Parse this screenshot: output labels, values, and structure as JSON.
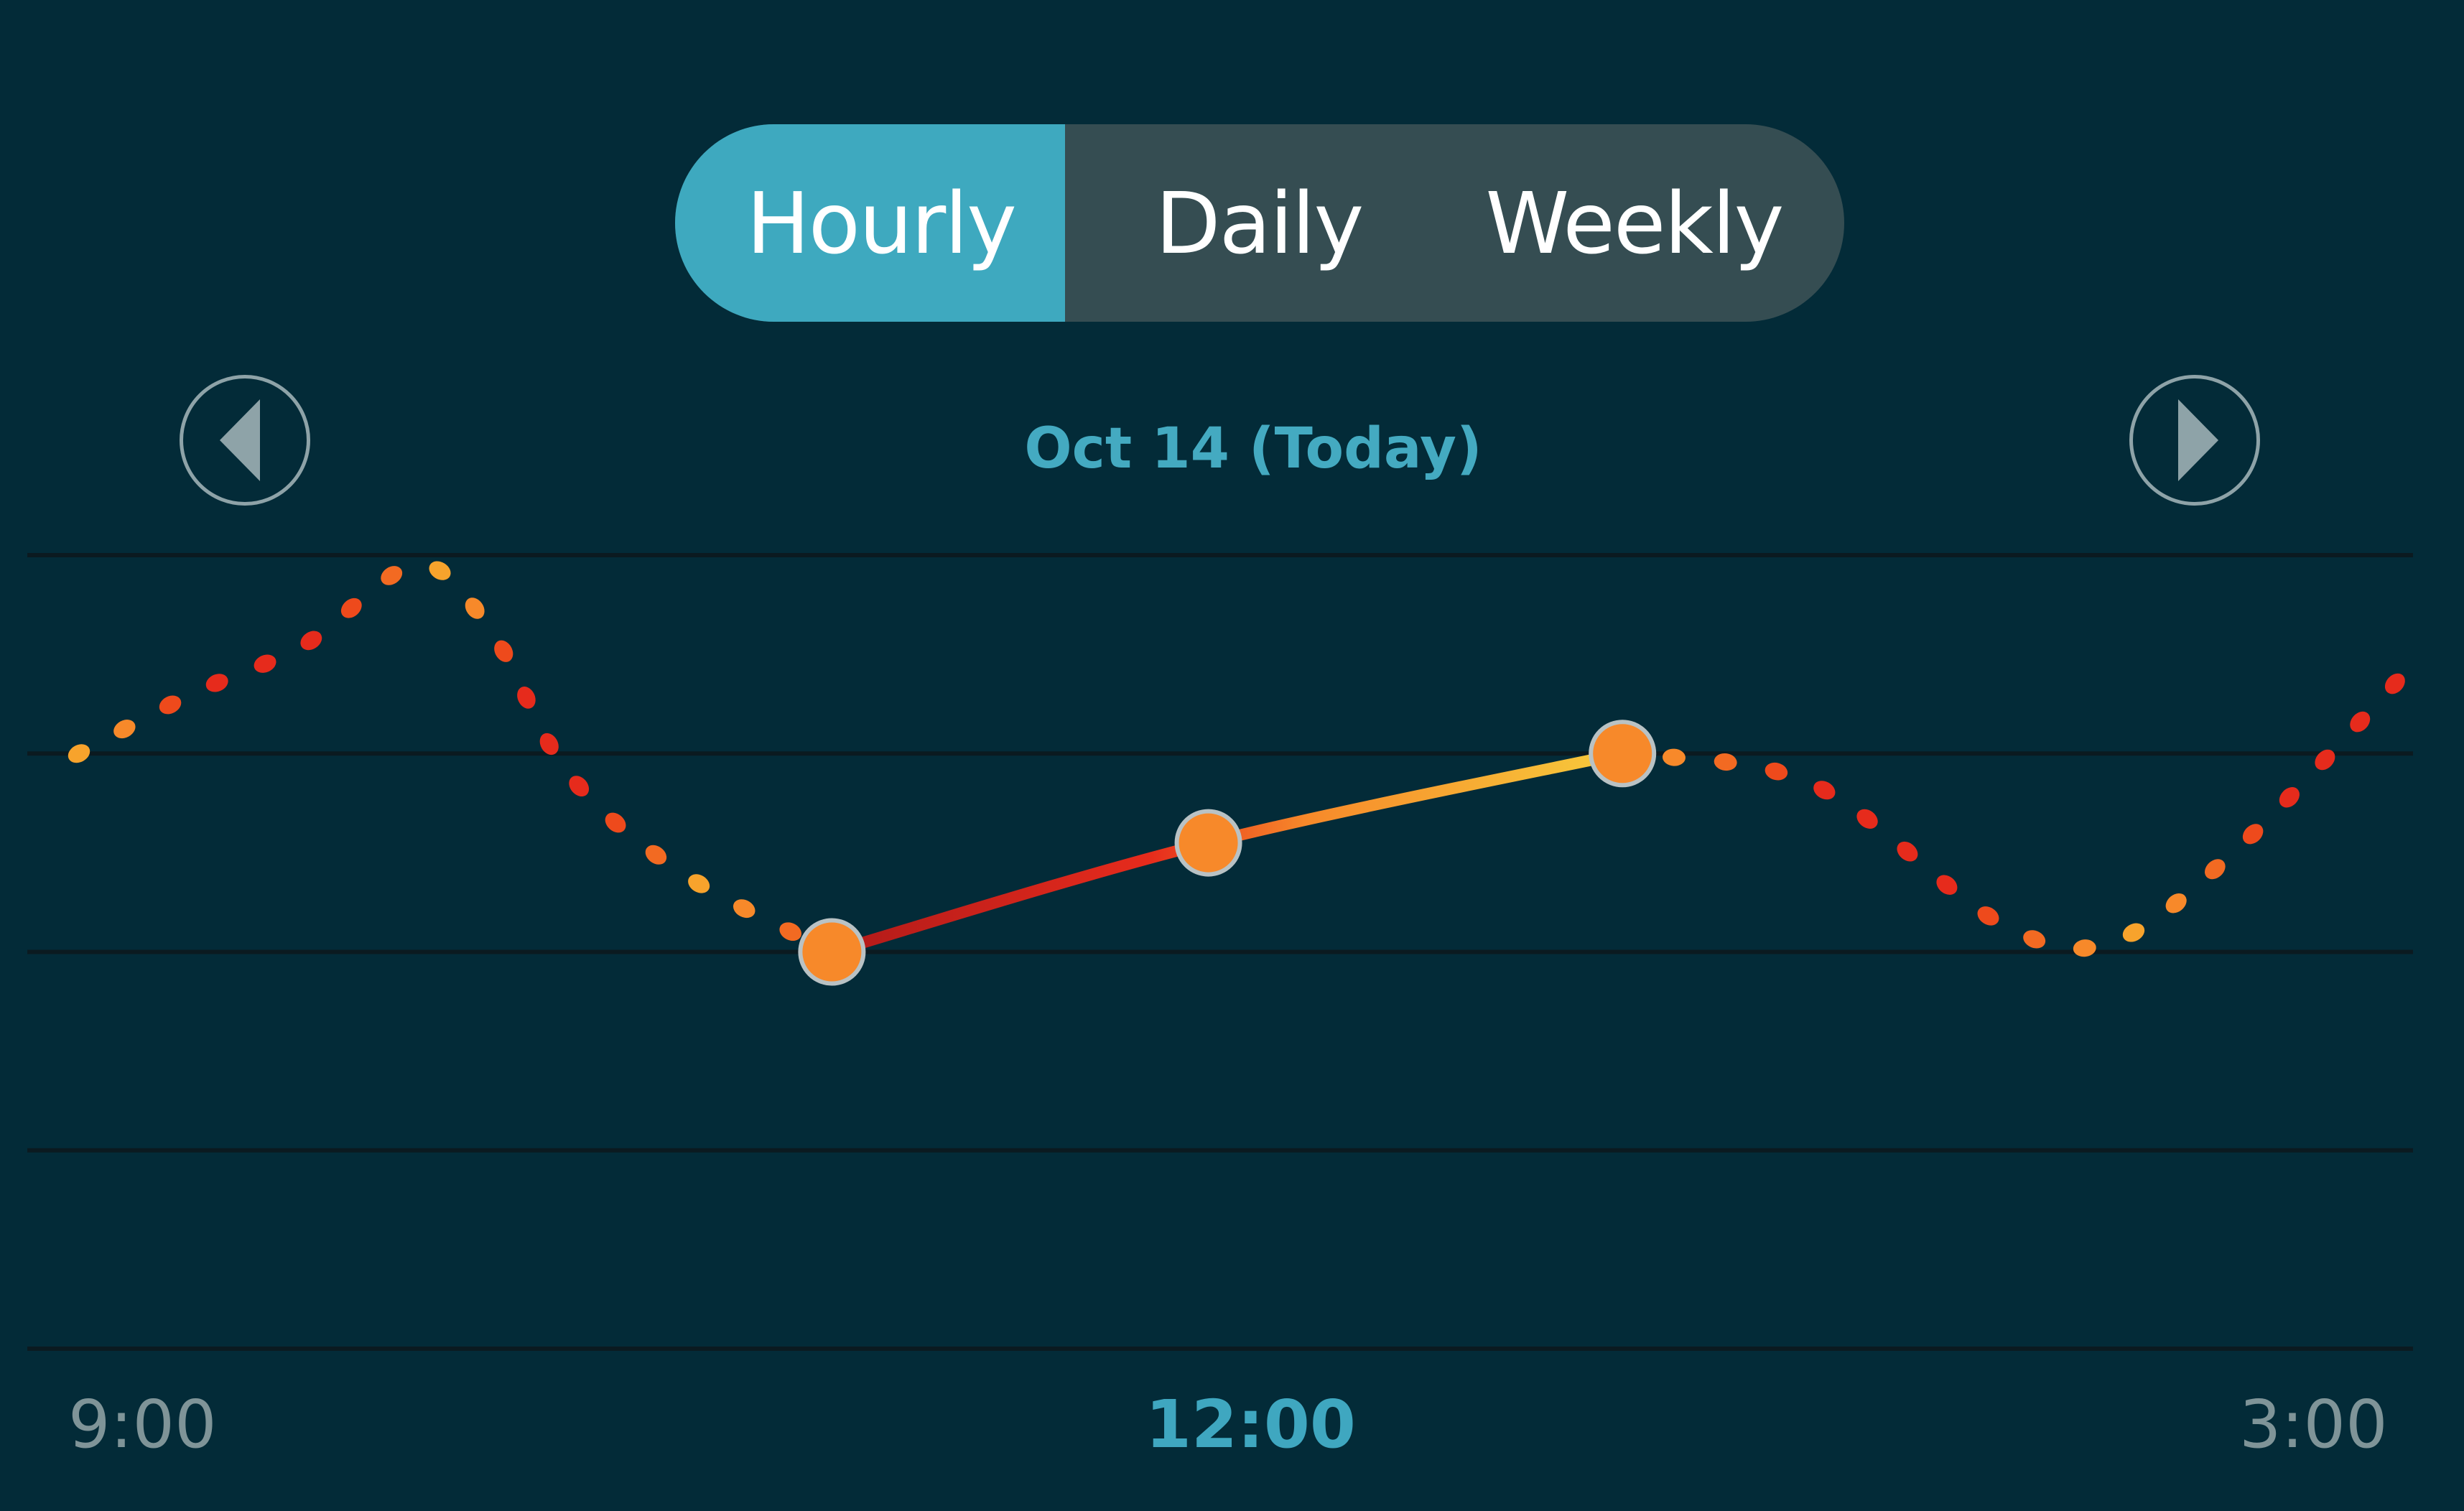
{
  "tabs": [
    {
      "label": "Hourly",
      "active": true
    },
    {
      "label": "Daily",
      "active": false
    },
    {
      "label": "Weekly",
      "active": false
    }
  ],
  "nav": {
    "prev_icon": "chevron-left-icon",
    "next_icon": "chevron-right-icon"
  },
  "date_label": "Oct 14 (Today)",
  "colors": {
    "background": "#032b38",
    "active_tab": "#3ea9bf",
    "tab_bar": "#354d52",
    "accent_text": "#44aac1",
    "grid": "#0b1a20",
    "marker": "#f7892a",
    "line_red": "#e62b1c",
    "line_yellow": "#f7cc3c"
  },
  "chart_data": {
    "type": "line",
    "title": "",
    "xlabel": "",
    "ylabel": "",
    "x_ticks": [
      "9:00",
      "12:00",
      "3:00"
    ],
    "highlighted_tick": "12:00",
    "grid": true,
    "series": [
      {
        "style": "dotted",
        "points": [
          {
            "x": 9.0,
            "y": 3.0
          },
          {
            "x": 9.3,
            "y": 3.3
          },
          {
            "x": 9.6,
            "y": 3.55
          },
          {
            "x": 9.9,
            "y": 3.95
          },
          {
            "x": 10.1,
            "y": 3.6
          },
          {
            "x": 10.3,
            "y": 2.9
          },
          {
            "x": 10.6,
            "y": 2.4
          },
          {
            "x": 11.0,
            "y": 2.0
          }
        ]
      },
      {
        "style": "solid",
        "points": [
          {
            "x": 11.0,
            "y": 2.0
          },
          {
            "x": 12.0,
            "y": 2.55
          },
          {
            "x": 13.1,
            "y": 3.0
          }
        ]
      },
      {
        "style": "dotted",
        "points": [
          {
            "x": 13.1,
            "y": 3.0
          },
          {
            "x": 13.6,
            "y": 2.85
          },
          {
            "x": 14.1,
            "y": 2.15
          },
          {
            "x": 14.4,
            "y": 2.05
          },
          {
            "x": 14.75,
            "y": 2.55
          },
          {
            "x": 15.2,
            "y": 3.45
          }
        ]
      }
    ],
    "markers": [
      {
        "x": 11.0,
        "y": 2.0
      },
      {
        "x": 12.0,
        "y": 2.55
      },
      {
        "x": 13.1,
        "y": 3.0
      }
    ]
  }
}
